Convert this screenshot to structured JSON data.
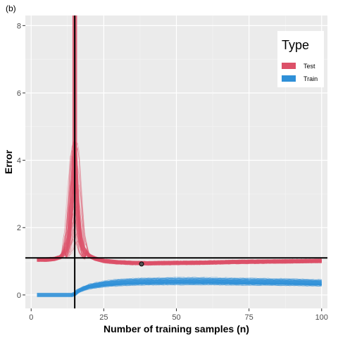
{
  "panel_tag": "(b)",
  "chart_data": {
    "type": "line",
    "title": "",
    "xlabel": "Number of training samples (n)",
    "ylabel": "Error",
    "xlim": [
      -2,
      102
    ],
    "ylim": [
      -0.4,
      8.3
    ],
    "x_ticks": [
      0,
      25,
      50,
      75,
      100
    ],
    "x_tick_labels": [
      "0",
      "25",
      "50",
      "75",
      "100"
    ],
    "y_ticks": [
      0,
      2,
      4,
      6,
      8
    ],
    "y_tick_labels": [
      "0",
      "2",
      "4",
      "6",
      "8"
    ],
    "grid": true,
    "legend": {
      "title": "Type",
      "position": "top-right",
      "entries": [
        {
          "label": "Test",
          "color": "#dc5068"
        },
        {
          "label": "Train",
          "color": "#2f90d8"
        }
      ]
    },
    "vline_x": 15,
    "hline_y": 1.1,
    "highlight_point": {
      "x": 38,
      "y": 0.92
    },
    "series": [
      {
        "name": "Test",
        "color": "#dc5068",
        "x": [
          2,
          5,
          8,
          10,
          11,
          12,
          13,
          14,
          15,
          16,
          17,
          18,
          19,
          20,
          22,
          25,
          30,
          35,
          40,
          50,
          60,
          70,
          80,
          90,
          100
        ],
        "y": [
          1.05,
          1.05,
          1.07,
          1.12,
          1.2,
          1.35,
          1.7,
          2.8,
          4.5,
          2.4,
          1.65,
          1.38,
          1.25,
          1.16,
          1.08,
          1.01,
          0.97,
          0.95,
          0.94,
          0.95,
          0.96,
          0.98,
          0.99,
          1.0,
          1.01
        ]
      },
      {
        "name": "Train",
        "color": "#2f90d8",
        "x": [
          2,
          5,
          8,
          10,
          12,
          14,
          15,
          16,
          18,
          20,
          25,
          30,
          35,
          40,
          50,
          60,
          70,
          80,
          90,
          100
        ],
        "y": [
          0.0,
          0.0,
          0.0,
          0.0,
          0.0,
          0.0,
          0.03,
          0.11,
          0.19,
          0.25,
          0.32,
          0.36,
          0.38,
          0.39,
          0.4,
          0.4,
          0.39,
          0.38,
          0.37,
          0.35
        ]
      }
    ]
  }
}
